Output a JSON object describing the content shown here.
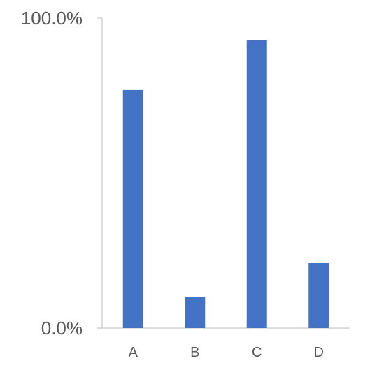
{
  "chart_data": {
    "type": "bar",
    "title": "",
    "xlabel": "",
    "ylabel": "",
    "categories": [
      "A",
      "B",
      "C",
      "D"
    ],
    "values": [
      0.77,
      0.1,
      0.93,
      0.21
    ],
    "ylim": [
      0,
      1
    ],
    "y_tick_labels": [
      "0.0%",
      "100.0%"
    ],
    "grid": false,
    "legend": "none",
    "bar_color": "#4472C4",
    "axis_color": "#BFBFBF",
    "text_color": "#595959"
  }
}
